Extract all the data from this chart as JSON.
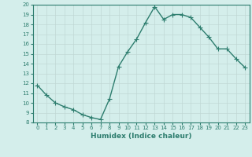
{
  "x": [
    0,
    1,
    2,
    3,
    4,
    5,
    6,
    7,
    8,
    9,
    10,
    11,
    12,
    13,
    14,
    15,
    16,
    17,
    18,
    19,
    20,
    21,
    22,
    23
  ],
  "y": [
    11.8,
    10.8,
    10.0,
    9.6,
    9.3,
    8.8,
    8.5,
    8.3,
    10.4,
    13.7,
    15.2,
    16.5,
    18.2,
    19.8,
    18.5,
    19.0,
    19.0,
    18.7,
    17.7,
    16.7,
    15.5,
    15.5,
    14.5,
    13.6
  ],
  "line_color": "#2d7d6e",
  "bg_color": "#d4eeeb",
  "grid_color": "#c0d8d5",
  "xlabel": "Humidex (Indice chaleur)",
  "ylim": [
    8,
    20
  ],
  "xlim": [
    -0.5,
    23.5
  ],
  "yticks": [
    8,
    9,
    10,
    11,
    12,
    13,
    14,
    15,
    16,
    17,
    18,
    19,
    20
  ],
  "xticks": [
    0,
    1,
    2,
    3,
    4,
    5,
    6,
    7,
    8,
    9,
    10,
    11,
    12,
    13,
    14,
    15,
    16,
    17,
    18,
    19,
    20,
    21,
    22,
    23
  ],
  "tick_color": "#2d7d6e",
  "text_color": "#2d7d6e",
  "marker": "+",
  "linewidth": 1.0,
  "markersize": 4,
  "markeredgewidth": 0.8
}
